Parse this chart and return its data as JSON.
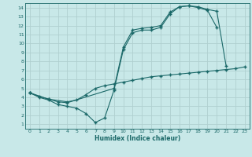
{
  "xlabel": "Humidex (Indice chaleur)",
  "bg_color": "#c8e8e8",
  "grid_color": "#b0d0d0",
  "line_color": "#1a6868",
  "xlim": [
    -0.5,
    23.5
  ],
  "ylim": [
    0.5,
    14.5
  ],
  "xticks": [
    0,
    1,
    2,
    3,
    4,
    5,
    6,
    7,
    8,
    9,
    10,
    11,
    12,
    13,
    14,
    15,
    16,
    17,
    18,
    19,
    20,
    21,
    22,
    23
  ],
  "yticks": [
    1,
    2,
    3,
    4,
    5,
    6,
    7,
    8,
    9,
    10,
    11,
    12,
    13,
    14
  ],
  "line1_x": [
    0,
    1,
    2,
    3,
    4,
    5,
    6,
    7,
    8,
    9,
    10,
    11,
    12,
    13,
    14,
    15,
    16,
    17,
    18,
    19,
    20
  ],
  "line1_y": [
    4.5,
    4.0,
    3.7,
    3.2,
    3.0,
    2.8,
    2.2,
    1.2,
    1.7,
    4.8,
    9.3,
    11.2,
    11.5,
    11.5,
    11.8,
    13.3,
    14.1,
    14.2,
    14.0,
    13.7,
    11.8
  ],
  "line2_x": [
    0,
    1,
    2,
    3,
    4,
    9,
    10,
    11,
    12,
    13,
    14,
    15,
    16,
    17,
    18,
    19,
    20,
    21
  ],
  "line2_y": [
    4.5,
    4.1,
    3.8,
    3.5,
    3.4,
    5.0,
    9.6,
    11.5,
    11.7,
    11.8,
    12.0,
    13.5,
    14.1,
    14.2,
    14.1,
    13.8,
    13.6,
    7.5
  ],
  "line3_x": [
    0,
    2,
    4,
    5,
    6,
    7,
    8,
    9,
    10,
    11,
    12,
    13,
    14,
    15,
    16,
    17,
    18,
    19,
    20,
    21,
    22,
    23
  ],
  "line3_y": [
    4.5,
    3.8,
    3.5,
    3.7,
    4.3,
    5.0,
    5.3,
    5.5,
    5.7,
    5.9,
    6.1,
    6.3,
    6.4,
    6.5,
    6.6,
    6.7,
    6.8,
    6.9,
    7.0,
    7.1,
    7.2,
    7.4
  ]
}
